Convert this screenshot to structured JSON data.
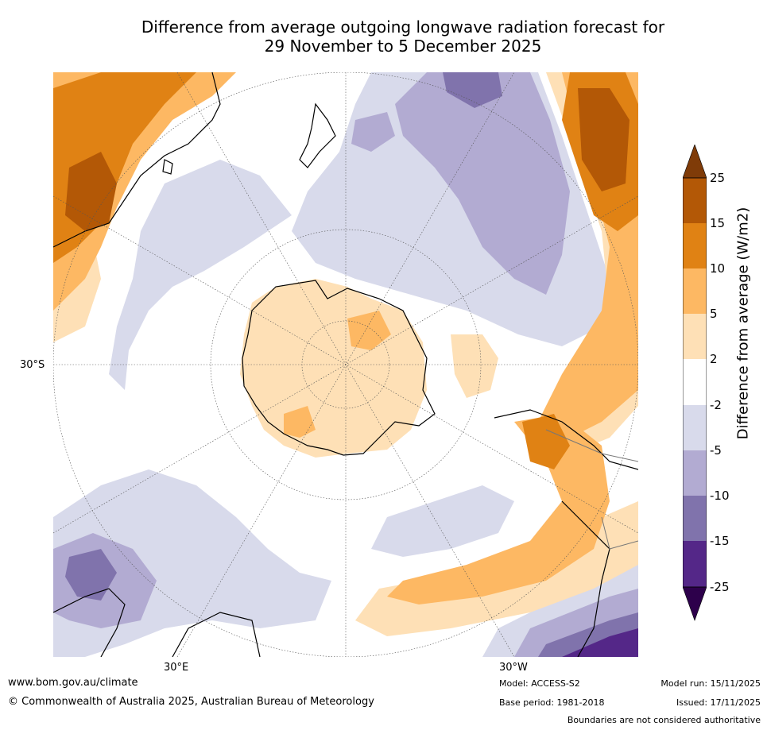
{
  "title_line1": "Difference from average outgoing longwave radiation forecast for",
  "title_line2": "29 November to 5 December 2025",
  "map": {
    "lat_label": "30°S",
    "lon_label_east": "30°E",
    "lon_label_west": "30°W"
  },
  "colorbar": {
    "label": "Difference from average (W/m2)",
    "ticks": [
      "25",
      "15",
      "10",
      "5",
      "2",
      "-2",
      "-5",
      "-10",
      "-15",
      "-25"
    ],
    "colors": {
      "over": "#7f3b08",
      "b15_25": "#b35806",
      "b10_15": "#e08214",
      "b5_10": "#fdb863",
      "b2_5": "#fee0b6",
      "neutral": "#ffffff",
      "bn5_n2": "#d8daeb",
      "bn10_n5": "#b2abd2",
      "bn15_n10": "#8073ac",
      "bn25_n15": "#542788",
      "under": "#2d004b"
    }
  },
  "footer": {
    "website": "www.bom.gov.au/climate",
    "copyright": "© Commonwealth of Australia 2025, Australian Bureau of Meteorology",
    "model": "Model: ACCESS-S2",
    "base_period": "Base period: 1981-2018",
    "model_run": "Model run: 15/11/2025",
    "issued": "Issued: 17/11/2025",
    "disclaimer": "Boundaries are not considered authoritative"
  }
}
